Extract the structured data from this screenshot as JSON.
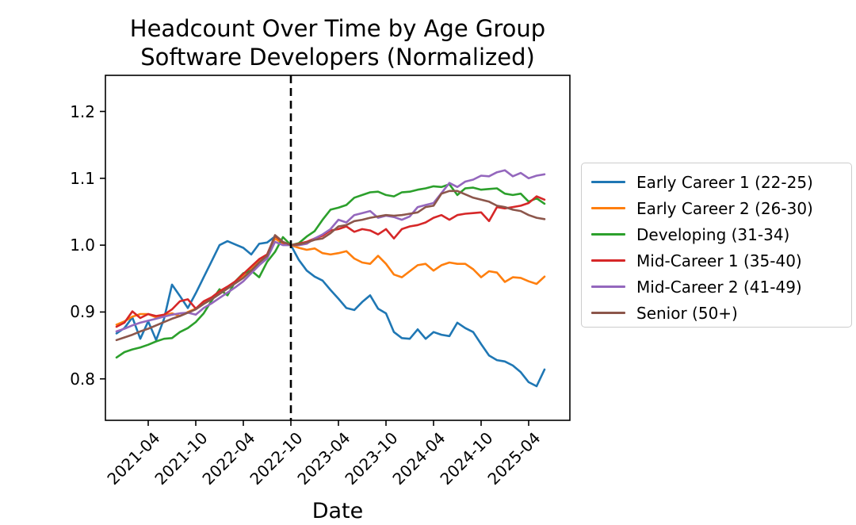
{
  "chart_data": {
    "type": "line",
    "title": "Headcount Over Time by Age Group",
    "subtitle": "Software Developers (Normalized)",
    "xlabel": "Date",
    "ylabel": "",
    "grid": false,
    "legend_position": "right of plot",
    "ylim": [
      0.738,
      1.254
    ],
    "y_ticks": [
      0.8,
      0.9,
      1.0,
      1.1,
      1.2
    ],
    "y_tick_labels": [
      "0.8",
      "0.9",
      "1.0",
      "1.1",
      "1.2"
    ],
    "x_tick_labels": [
      "2021-04",
      "2021-10",
      "2022-04",
      "2022-10",
      "2023-04",
      "2023-10",
      "2024-04",
      "2024-10",
      "2025-04"
    ],
    "vline": {
      "x": "2022-10",
      "style": "dashed",
      "color": "#000000"
    },
    "x": [
      "2020-12",
      "2021-01",
      "2021-02",
      "2021-03",
      "2021-04",
      "2021-05",
      "2021-06",
      "2021-07",
      "2021-08",
      "2021-09",
      "2021-10",
      "2021-11",
      "2021-12",
      "2022-01",
      "2022-02",
      "2022-03",
      "2022-04",
      "2022-05",
      "2022-06",
      "2022-07",
      "2022-08",
      "2022-09",
      "2022-10",
      "2022-11",
      "2022-12",
      "2023-01",
      "2023-02",
      "2023-03",
      "2023-04",
      "2023-05",
      "2023-06",
      "2023-07",
      "2023-08",
      "2023-09",
      "2023-10",
      "2023-11",
      "2023-12",
      "2024-01",
      "2024-02",
      "2024-03",
      "2024-04",
      "2024-05",
      "2024-06",
      "2024-07",
      "2024-08",
      "2024-09",
      "2024-10",
      "2024-11",
      "2024-12",
      "2025-01",
      "2025-02",
      "2025-03",
      "2025-04",
      "2025-05",
      "2025-06"
    ],
    "series": [
      {
        "name": "Early Career 1 (22-25)",
        "color": "#1f77b4",
        "values": [
          0.868,
          0.876,
          0.892,
          0.86,
          0.886,
          0.858,
          0.89,
          0.941,
          0.924,
          0.906,
          0.928,
          0.952,
          0.976,
          1.0,
          1.006,
          1.001,
          0.996,
          0.986,
          1.002,
          1.004,
          1.013,
          1.003,
          1.0,
          0.978,
          0.962,
          0.953,
          0.947,
          0.933,
          0.92,
          0.906,
          0.903,
          0.915,
          0.925,
          0.905,
          0.898,
          0.87,
          0.861,
          0.86,
          0.874,
          0.86,
          0.87,
          0.866,
          0.864,
          0.884,
          0.876,
          0.87,
          0.852,
          0.835,
          0.828,
          0.826,
          0.82,
          0.81,
          0.795,
          0.789,
          0.814
        ]
      },
      {
        "name": "Early Career 2 (26-30)",
        "color": "#ff7f0e",
        "values": [
          0.881,
          0.886,
          0.893,
          0.897,
          0.897,
          0.892,
          0.895,
          0.898,
          0.894,
          0.9,
          0.905,
          0.913,
          0.92,
          0.928,
          0.936,
          0.944,
          0.953,
          0.966,
          0.976,
          0.985,
          1.01,
          1.002,
          1.0,
          0.996,
          0.993,
          0.995,
          0.988,
          0.986,
          0.988,
          0.991,
          0.98,
          0.974,
          0.972,
          0.984,
          0.972,
          0.956,
          0.952,
          0.961,
          0.97,
          0.972,
          0.962,
          0.97,
          0.974,
          0.972,
          0.972,
          0.964,
          0.952,
          0.961,
          0.959,
          0.945,
          0.952,
          0.951,
          0.946,
          0.942,
          0.953
        ]
      },
      {
        "name": "Developing (31-34)",
        "color": "#2ca02c",
        "values": [
          0.832,
          0.84,
          0.844,
          0.847,
          0.851,
          0.856,
          0.86,
          0.861,
          0.87,
          0.876,
          0.885,
          0.898,
          0.917,
          0.934,
          0.925,
          0.946,
          0.958,
          0.962,
          0.952,
          0.975,
          0.99,
          1.012,
          1.0,
          1.003,
          1.013,
          1.021,
          1.038,
          1.053,
          1.056,
          1.06,
          1.071,
          1.075,
          1.079,
          1.08,
          1.075,
          1.073,
          1.079,
          1.08,
          1.083,
          1.085,
          1.088,
          1.087,
          1.091,
          1.075,
          1.085,
          1.086,
          1.083,
          1.084,
          1.085,
          1.077,
          1.075,
          1.077,
          1.065,
          1.07,
          1.062
        ]
      },
      {
        "name": "Mid-Career 1 (35-40)",
        "color": "#d62728",
        "values": [
          0.878,
          0.884,
          0.901,
          0.891,
          0.897,
          0.894,
          0.896,
          0.904,
          0.916,
          0.919,
          0.905,
          0.916,
          0.922,
          0.931,
          0.938,
          0.946,
          0.957,
          0.968,
          0.979,
          0.986,
          1.014,
          1.004,
          1.0,
          1.002,
          1.005,
          1.01,
          1.014,
          1.022,
          1.024,
          1.028,
          1.02,
          1.024,
          1.022,
          1.016,
          1.024,
          1.01,
          1.024,
          1.028,
          1.03,
          1.034,
          1.041,
          1.045,
          1.038,
          1.045,
          1.047,
          1.048,
          1.049,
          1.036,
          1.057,
          1.055,
          1.057,
          1.059,
          1.063,
          1.073,
          1.068
        ]
      },
      {
        "name": "Mid-Career 2 (41-49)",
        "color": "#9467bd",
        "values": [
          0.871,
          0.875,
          0.88,
          0.884,
          0.887,
          0.89,
          0.893,
          0.896,
          0.898,
          0.899,
          0.896,
          0.906,
          0.913,
          0.921,
          0.929,
          0.937,
          0.946,
          0.958,
          0.97,
          0.98,
          1.005,
          1.0,
          1.0,
          1.0,
          1.002,
          1.01,
          1.016,
          1.024,
          1.038,
          1.034,
          1.045,
          1.048,
          1.051,
          1.041,
          1.044,
          1.042,
          1.038,
          1.043,
          1.057,
          1.06,
          1.063,
          1.078,
          1.093,
          1.087,
          1.095,
          1.098,
          1.104,
          1.103,
          1.109,
          1.112,
          1.103,
          1.108,
          1.1,
          1.104,
          1.106
        ]
      },
      {
        "name": "Senior (50+)",
        "color": "#8c564b",
        "values": [
          0.858,
          0.862,
          0.866,
          0.871,
          0.875,
          0.88,
          0.885,
          0.89,
          0.894,
          0.899,
          0.904,
          0.912,
          0.919,
          0.927,
          0.935,
          0.943,
          0.951,
          0.962,
          0.974,
          0.984,
          1.015,
          1.005,
          1.0,
          1.001,
          1.004,
          1.008,
          1.01,
          1.018,
          1.028,
          1.03,
          1.036,
          1.038,
          1.041,
          1.043,
          1.045,
          1.044,
          1.045,
          1.047,
          1.049,
          1.057,
          1.059,
          1.077,
          1.081,
          1.081,
          1.076,
          1.071,
          1.068,
          1.065,
          1.059,
          1.057,
          1.053,
          1.051,
          1.045,
          1.041,
          1.039
        ]
      }
    ]
  }
}
